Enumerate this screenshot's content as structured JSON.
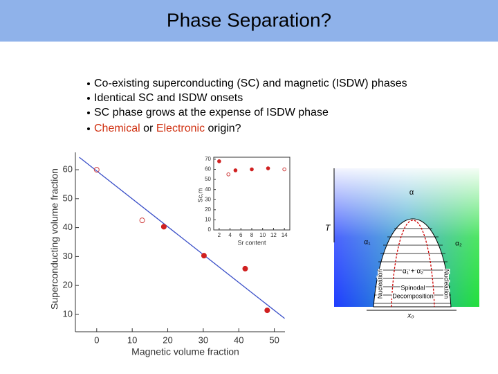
{
  "header": {
    "title": "Phase Separation?"
  },
  "bullets": [
    "Co-existing superconducting (SC) and magnetic (ISDW) phases",
    "Identical SC and ISDW onsets",
    "SC phase grows at the expense of ISDW phase"
  ],
  "last_bullet": [
    "Chemical",
    "or",
    "Electronic",
    "origin?"
  ],
  "chart_data": [
    {
      "type": "scatter",
      "xlabel": "Magnetic  volume fraction",
      "ylabel": "Superconducting volume fraction",
      "xlim": [
        -6,
        53
      ],
      "ylim": [
        4,
        66
      ],
      "xticks": [
        0,
        10,
        20,
        30,
        40,
        50
      ],
      "yticks": [
        10,
        20,
        30,
        40,
        50,
        60
      ],
      "series": [
        {
          "type": "line",
          "color": "#3a4fc8",
          "x": [
            -4.9,
            52.9
          ],
          "values": [
            64.3,
            8.6
          ]
        },
        {
          "marker": "open",
          "color": "#d04040",
          "x": [
            0,
            12.8
          ],
          "values": [
            60,
            42.5
          ]
        },
        {
          "marker": "filled",
          "color": "#d02020",
          "x": [
            18.9,
            30.2,
            41.8,
            48
          ],
          "values": [
            40.3,
            30.3,
            25.8,
            11.4
          ]
        }
      ]
    },
    {
      "type": "scatter",
      "xlabel": "Sr content",
      "ylabel": "Sc,m",
      "xlim": [
        1,
        15
      ],
      "ylim": [
        0,
        72
      ],
      "xticks": [
        2,
        4,
        6,
        8,
        10,
        12,
        14
      ],
      "yticks": [
        0,
        10,
        20,
        30,
        40,
        50,
        60,
        70
      ],
      "series": [
        {
          "marker": "open",
          "color": "#d04040",
          "x": [
            3.7,
            14
          ],
          "values": [
            55,
            60
          ]
        },
        {
          "marker": "filled",
          "color": "#d02020",
          "x": [
            2,
            5,
            8,
            11
          ],
          "values": [
            68,
            59,
            60,
            61
          ]
        }
      ]
    }
  ],
  "diagram": {
    "alpha_top": "α",
    "alpha1": "α₁",
    "alpha2": "α₂",
    "mixed": "α₁ + α₂",
    "temperature": "T",
    "nucleation_left": "Nucleation",
    "nucleation_right": "Nucleation",
    "spinodal": [
      "Spinodal",
      "Decomposition"
    ],
    "composition": "x₀"
  }
}
